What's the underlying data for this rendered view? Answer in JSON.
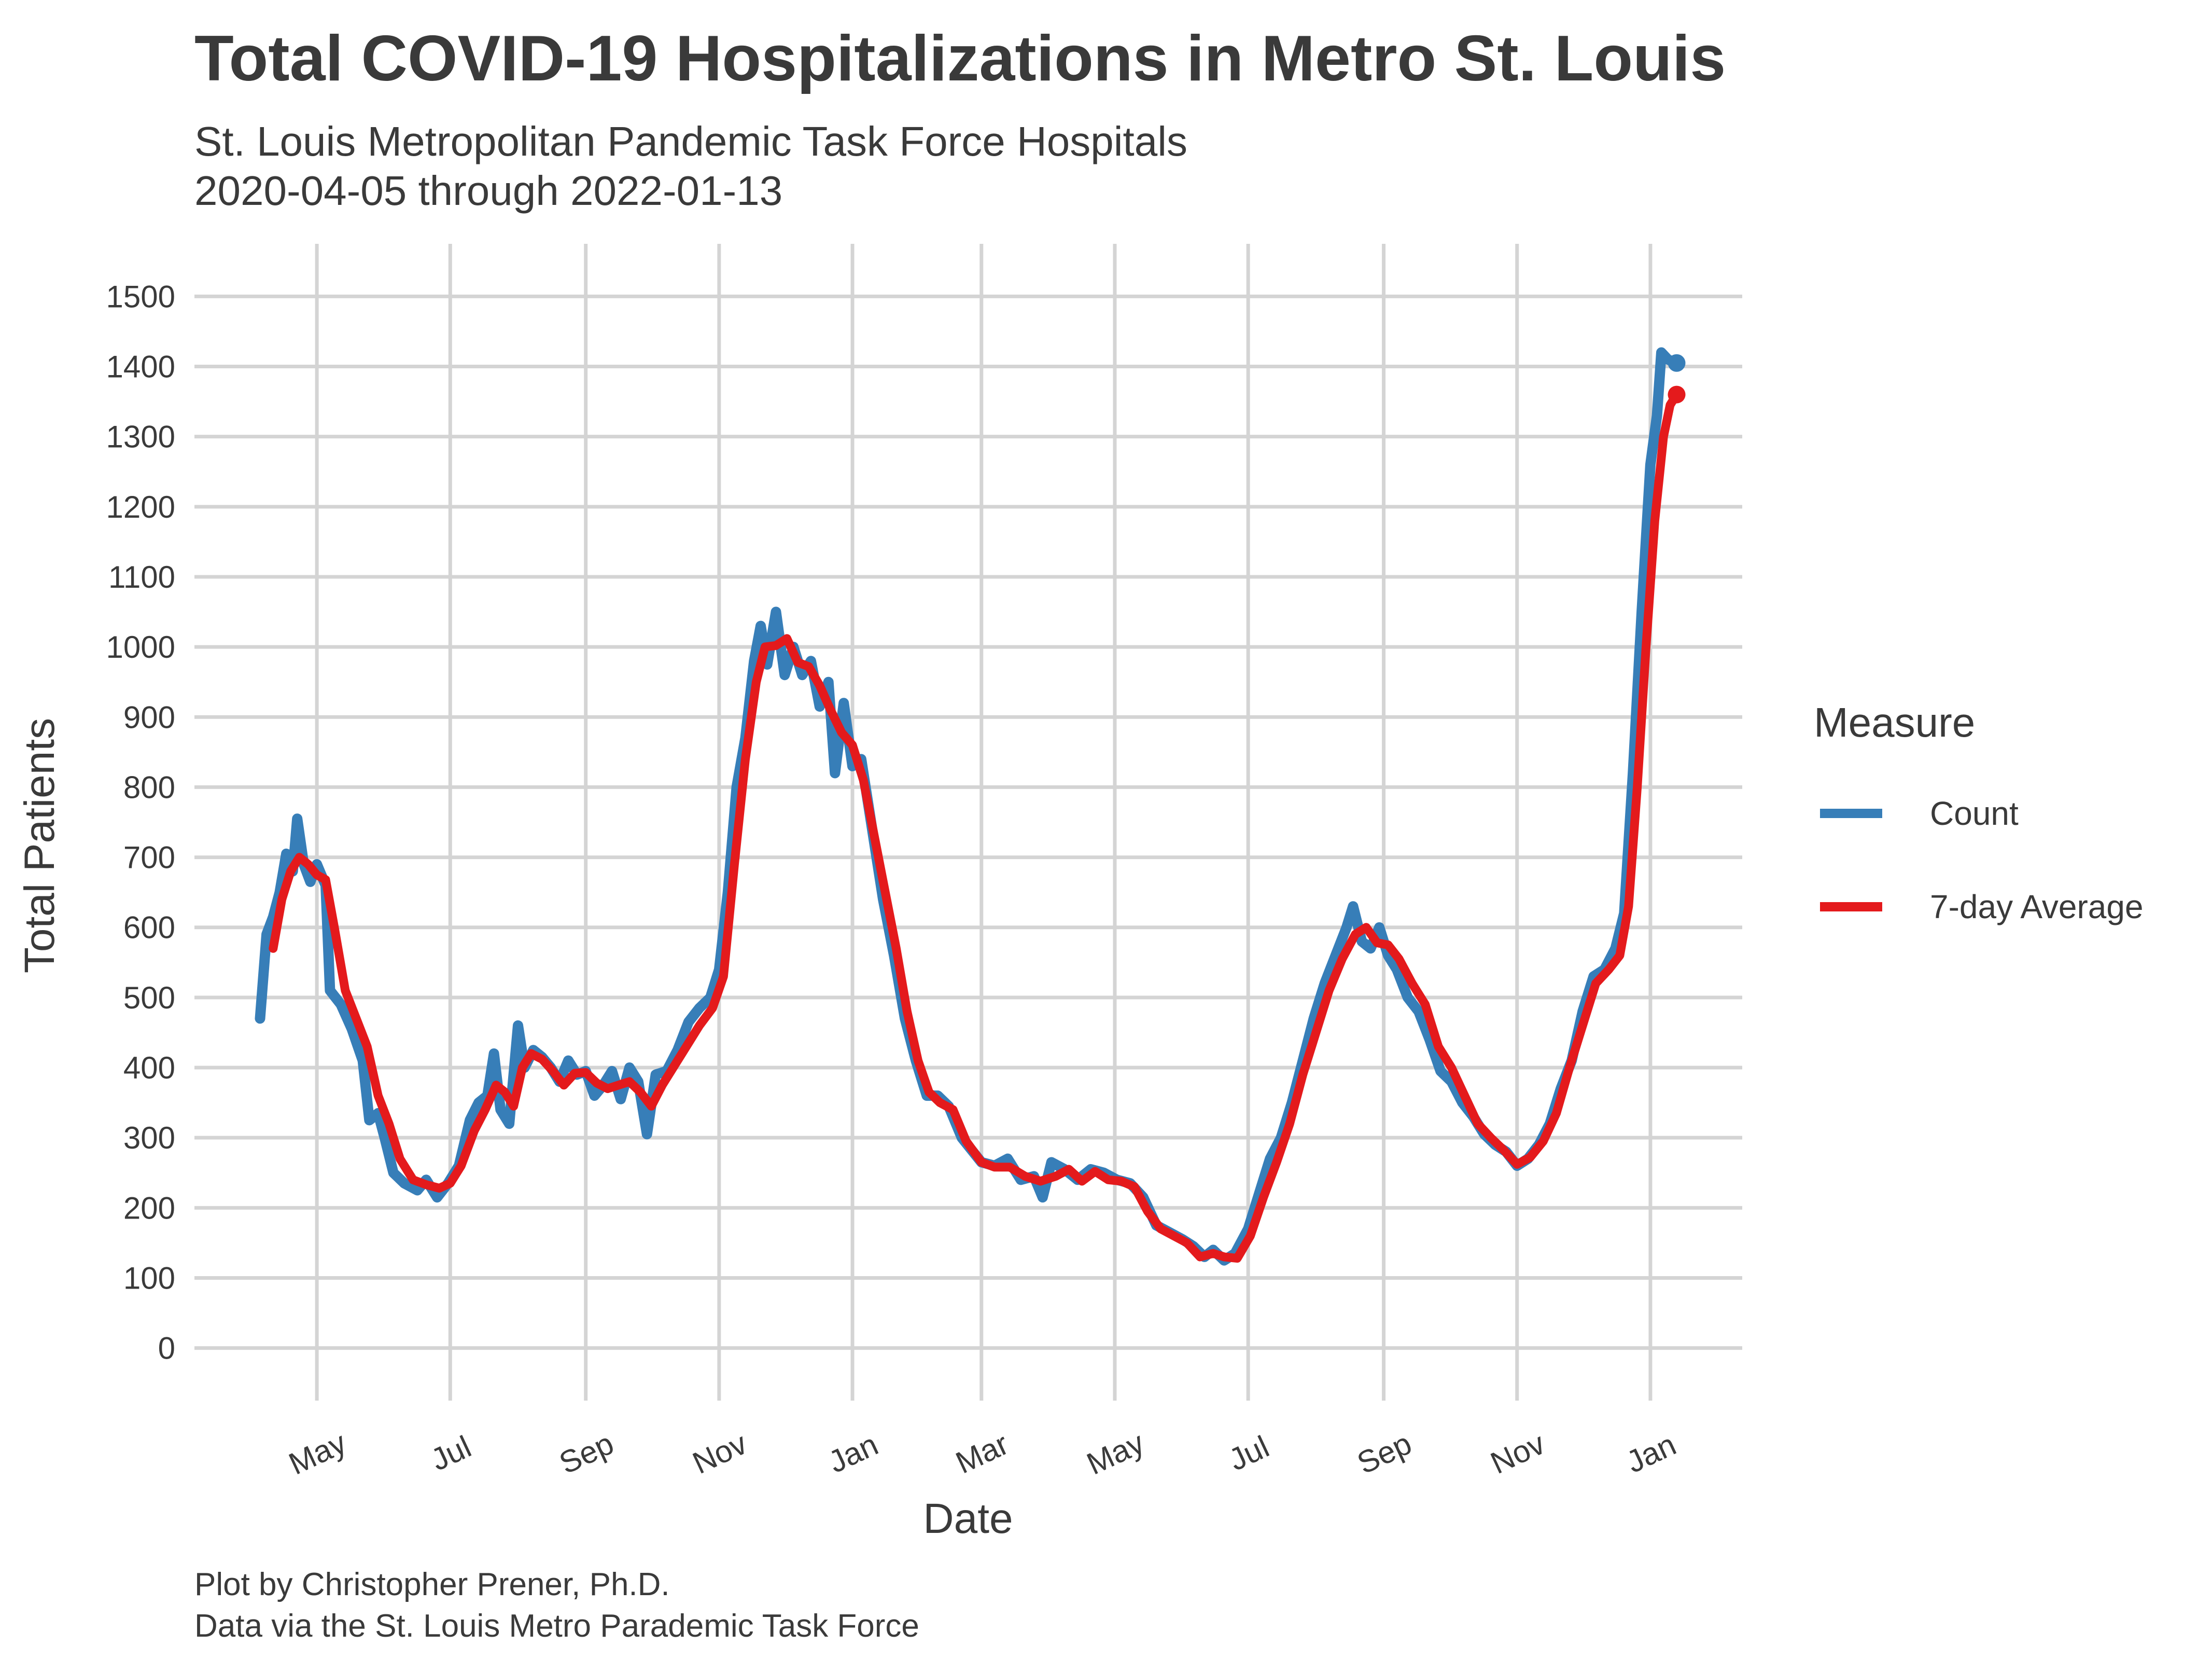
{
  "chart_data": {
    "type": "line",
    "title": "Total COVID-19 Hospitalizations in Metro St. Louis",
    "subtitle_lines": [
      "St. Louis Metropolitan Pandemic Task Force Hospitals",
      "2020-04-05 through 2022-01-13"
    ],
    "xlabel": "Date",
    "ylabel": "Total Patients",
    "xlim": [
      "2020-03-06",
      "2022-02-12"
    ],
    "ylim": [
      -75,
      1575
    ],
    "y_ticks": [
      0,
      100,
      200,
      300,
      400,
      500,
      600,
      700,
      800,
      900,
      1000,
      1100,
      1200,
      1300,
      1400,
      1500
    ],
    "x_ticks": [
      {
        "date": "2020-05-01",
        "label": "May"
      },
      {
        "date": "2020-07-01",
        "label": "Jul"
      },
      {
        "date": "2020-09-01",
        "label": "Sep"
      },
      {
        "date": "2020-11-01",
        "label": "Nov"
      },
      {
        "date": "2021-01-01",
        "label": "Jan"
      },
      {
        "date": "2021-03-01",
        "label": "Mar"
      },
      {
        "date": "2021-05-01",
        "label": "May"
      },
      {
        "date": "2021-07-01",
        "label": "Jul"
      },
      {
        "date": "2021-09-01",
        "label": "Sep"
      },
      {
        "date": "2021-11-01",
        "label": "Nov"
      },
      {
        "date": "2022-01-01",
        "label": "Jan"
      }
    ],
    "grid": true,
    "legend": {
      "title": "Measure",
      "position": "right"
    },
    "series": [
      {
        "name": "Count",
        "color": "#377eb8",
        "points": [
          [
            "2020-04-05",
            470
          ],
          [
            "2020-04-08",
            590
          ],
          [
            "2020-04-11",
            615
          ],
          [
            "2020-04-14",
            650
          ],
          [
            "2020-04-17",
            705
          ],
          [
            "2020-04-20",
            680
          ],
          [
            "2020-04-22",
            755
          ],
          [
            "2020-04-25",
            690
          ],
          [
            "2020-04-28",
            665
          ],
          [
            "2020-05-01",
            690
          ],
          [
            "2020-05-05",
            660
          ],
          [
            "2020-05-07",
            510
          ],
          [
            "2020-05-12",
            490
          ],
          [
            "2020-05-17",
            455
          ],
          [
            "2020-05-22",
            410
          ],
          [
            "2020-05-25",
            325
          ],
          [
            "2020-05-29",
            335
          ],
          [
            "2020-06-01",
            300
          ],
          [
            "2020-06-05",
            250
          ],
          [
            "2020-06-10",
            235
          ],
          [
            "2020-06-16",
            225
          ],
          [
            "2020-06-20",
            240
          ],
          [
            "2020-06-25",
            215
          ],
          [
            "2020-06-30",
            235
          ],
          [
            "2020-07-05",
            260
          ],
          [
            "2020-07-10",
            325
          ],
          [
            "2020-07-14",
            350
          ],
          [
            "2020-07-18",
            360
          ],
          [
            "2020-07-21",
            420
          ],
          [
            "2020-07-24",
            340
          ],
          [
            "2020-07-28",
            320
          ],
          [
            "2020-08-01",
            460
          ],
          [
            "2020-08-04",
            400
          ],
          [
            "2020-08-08",
            425
          ],
          [
            "2020-08-12",
            415
          ],
          [
            "2020-08-16",
            400
          ],
          [
            "2020-08-20",
            380
          ],
          [
            "2020-08-24",
            410
          ],
          [
            "2020-08-28",
            390
          ],
          [
            "2020-09-01",
            395
          ],
          [
            "2020-09-05",
            360
          ],
          [
            "2020-09-09",
            375
          ],
          [
            "2020-09-13",
            395
          ],
          [
            "2020-09-17",
            355
          ],
          [
            "2020-09-21",
            400
          ],
          [
            "2020-09-25",
            380
          ],
          [
            "2020-09-29",
            305
          ],
          [
            "2020-10-03",
            390
          ],
          [
            "2020-10-08",
            395
          ],
          [
            "2020-10-13",
            425
          ],
          [
            "2020-10-18",
            465
          ],
          [
            "2020-10-23",
            485
          ],
          [
            "2020-10-28",
            500
          ],
          [
            "2020-11-01",
            540
          ],
          [
            "2020-11-05",
            650
          ],
          [
            "2020-11-09",
            800
          ],
          [
            "2020-11-13",
            870
          ],
          [
            "2020-11-17",
            980
          ],
          [
            "2020-11-20",
            1030
          ],
          [
            "2020-11-23",
            975
          ],
          [
            "2020-11-27",
            1050
          ],
          [
            "2020-12-01",
            960
          ],
          [
            "2020-12-05",
            1000
          ],
          [
            "2020-12-09",
            960
          ],
          [
            "2020-12-13",
            980
          ],
          [
            "2020-12-17",
            915
          ],
          [
            "2020-12-21",
            950
          ],
          [
            "2020-12-24",
            820
          ],
          [
            "2020-12-28",
            920
          ],
          [
            "2021-01-01",
            830
          ],
          [
            "2021-01-05",
            840
          ],
          [
            "2021-01-10",
            740
          ],
          [
            "2021-01-15",
            640
          ],
          [
            "2021-01-20",
            560
          ],
          [
            "2021-01-25",
            470
          ],
          [
            "2021-01-30",
            410
          ],
          [
            "2021-02-04",
            360
          ],
          [
            "2021-02-09",
            360
          ],
          [
            "2021-02-14",
            345
          ],
          [
            "2021-02-20",
            300
          ],
          [
            "2021-03-01",
            265
          ],
          [
            "2021-03-07",
            260
          ],
          [
            "2021-03-13",
            270
          ],
          [
            "2021-03-19",
            240
          ],
          [
            "2021-03-25",
            245
          ],
          [
            "2021-03-29",
            215
          ],
          [
            "2021-04-02",
            265
          ],
          [
            "2021-04-08",
            255
          ],
          [
            "2021-04-14",
            240
          ],
          [
            "2021-04-20",
            255
          ],
          [
            "2021-04-26",
            250
          ],
          [
            "2021-05-02",
            240
          ],
          [
            "2021-05-08",
            235
          ],
          [
            "2021-05-14",
            215
          ],
          [
            "2021-05-20",
            175
          ],
          [
            "2021-05-26",
            165
          ],
          [
            "2021-06-01",
            155
          ],
          [
            "2021-06-06",
            145
          ],
          [
            "2021-06-11",
            130
          ],
          [
            "2021-06-15",
            140
          ],
          [
            "2021-06-20",
            125
          ],
          [
            "2021-06-25",
            135
          ],
          [
            "2021-07-01",
            170
          ],
          [
            "2021-07-06",
            220
          ],
          [
            "2021-07-11",
            270
          ],
          [
            "2021-07-16",
            300
          ],
          [
            "2021-07-21",
            350
          ],
          [
            "2021-07-26",
            410
          ],
          [
            "2021-07-31",
            470
          ],
          [
            "2021-08-05",
            520
          ],
          [
            "2021-08-10",
            560
          ],
          [
            "2021-08-15",
            600
          ],
          [
            "2021-08-18",
            630
          ],
          [
            "2021-08-22",
            580
          ],
          [
            "2021-08-26",
            570
          ],
          [
            "2021-08-30",
            600
          ],
          [
            "2021-09-03",
            560
          ],
          [
            "2021-09-07",
            540
          ],
          [
            "2021-09-12",
            500
          ],
          [
            "2021-09-17",
            480
          ],
          [
            "2021-09-22",
            440
          ],
          [
            "2021-09-27",
            395
          ],
          [
            "2021-10-02",
            380
          ],
          [
            "2021-10-07",
            350
          ],
          [
            "2021-10-12",
            330
          ],
          [
            "2021-10-17",
            305
          ],
          [
            "2021-10-22",
            290
          ],
          [
            "2021-10-27",
            280
          ],
          [
            "2021-11-01",
            260
          ],
          [
            "2021-11-06",
            270
          ],
          [
            "2021-11-11",
            290
          ],
          [
            "2021-11-16",
            320
          ],
          [
            "2021-11-21",
            370
          ],
          [
            "2021-11-26",
            410
          ],
          [
            "2021-12-01",
            480
          ],
          [
            "2021-12-06",
            530
          ],
          [
            "2021-12-11",
            540
          ],
          [
            "2021-12-16",
            570
          ],
          [
            "2021-12-20",
            620
          ],
          [
            "2021-12-24",
            820
          ],
          [
            "2021-12-28",
            1050
          ],
          [
            "2022-01-01",
            1260
          ],
          [
            "2022-01-04",
            1330
          ],
          [
            "2022-01-06",
            1420
          ],
          [
            "2022-01-09",
            1410
          ],
          [
            "2022-01-13",
            1405
          ]
        ]
      },
      {
        "name": "7-day Average",
        "color": "#e41a1c",
        "points": [
          [
            "2020-04-11",
            570
          ],
          [
            "2020-04-15",
            640
          ],
          [
            "2020-04-19",
            680
          ],
          [
            "2020-04-23",
            700
          ],
          [
            "2020-04-27",
            690
          ],
          [
            "2020-05-01",
            675
          ],
          [
            "2020-05-05",
            668
          ],
          [
            "2020-05-09",
            600
          ],
          [
            "2020-05-14",
            510
          ],
          [
            "2020-05-19",
            470
          ],
          [
            "2020-05-24",
            430
          ],
          [
            "2020-05-29",
            360
          ],
          [
            "2020-06-03",
            320
          ],
          [
            "2020-06-08",
            270
          ],
          [
            "2020-06-14",
            240
          ],
          [
            "2020-06-20",
            233
          ],
          [
            "2020-06-26",
            228
          ],
          [
            "2020-07-01",
            235
          ],
          [
            "2020-07-06",
            260
          ],
          [
            "2020-07-12",
            310
          ],
          [
            "2020-07-17",
            340
          ],
          [
            "2020-07-22",
            375
          ],
          [
            "2020-07-26",
            365
          ],
          [
            "2020-07-30",
            345
          ],
          [
            "2020-08-03",
            400
          ],
          [
            "2020-08-07",
            420
          ],
          [
            "2020-08-12",
            412
          ],
          [
            "2020-08-17",
            395
          ],
          [
            "2020-08-22",
            375
          ],
          [
            "2020-08-27",
            392
          ],
          [
            "2020-09-01",
            393
          ],
          [
            "2020-09-06",
            378
          ],
          [
            "2020-09-11",
            370
          ],
          [
            "2020-09-16",
            375
          ],
          [
            "2020-09-21",
            380
          ],
          [
            "2020-09-26",
            365
          ],
          [
            "2020-10-01",
            345
          ],
          [
            "2020-10-06",
            375
          ],
          [
            "2020-10-11",
            400
          ],
          [
            "2020-10-17",
            430
          ],
          [
            "2020-10-23",
            460
          ],
          [
            "2020-10-29",
            485
          ],
          [
            "2020-11-03",
            530
          ],
          [
            "2020-11-08",
            690
          ],
          [
            "2020-11-13",
            840
          ],
          [
            "2020-11-18",
            950
          ],
          [
            "2020-11-22",
            1000
          ],
          [
            "2020-11-27",
            1002
          ],
          [
            "2020-12-02",
            1012
          ],
          [
            "2020-12-07",
            978
          ],
          [
            "2020-12-12",
            972
          ],
          [
            "2020-12-17",
            945
          ],
          [
            "2020-12-22",
            910
          ],
          [
            "2020-12-27",
            878
          ],
          [
            "2021-01-01",
            860
          ],
          [
            "2021-01-06",
            810
          ],
          [
            "2021-01-11",
            730
          ],
          [
            "2021-01-16",
            650
          ],
          [
            "2021-01-21",
            570
          ],
          [
            "2021-01-26",
            480
          ],
          [
            "2021-01-31",
            410
          ],
          [
            "2021-02-05",
            365
          ],
          [
            "2021-02-10",
            350
          ],
          [
            "2021-02-16",
            340
          ],
          [
            "2021-02-22",
            295
          ],
          [
            "2021-03-01",
            265
          ],
          [
            "2021-03-07",
            258
          ],
          [
            "2021-03-14",
            258
          ],
          [
            "2021-03-21",
            245
          ],
          [
            "2021-03-28",
            238
          ],
          [
            "2021-04-04",
            245
          ],
          [
            "2021-04-10",
            255
          ],
          [
            "2021-04-16",
            238
          ],
          [
            "2021-04-22",
            252
          ],
          [
            "2021-04-28",
            240
          ],
          [
            "2021-05-04",
            238
          ],
          [
            "2021-05-10",
            230
          ],
          [
            "2021-05-16",
            195
          ],
          [
            "2021-05-22",
            170
          ],
          [
            "2021-05-28",
            160
          ],
          [
            "2021-06-03",
            150
          ],
          [
            "2021-06-09",
            130
          ],
          [
            "2021-06-15",
            135
          ],
          [
            "2021-06-20",
            130
          ],
          [
            "2021-06-26",
            128
          ],
          [
            "2021-07-02",
            160
          ],
          [
            "2021-07-08",
            215
          ],
          [
            "2021-07-14",
            265
          ],
          [
            "2021-07-20",
            320
          ],
          [
            "2021-07-26",
            390
          ],
          [
            "2021-08-01",
            450
          ],
          [
            "2021-08-07",
            510
          ],
          [
            "2021-08-13",
            555
          ],
          [
            "2021-08-19",
            590
          ],
          [
            "2021-08-24",
            600
          ],
          [
            "2021-08-29",
            578
          ],
          [
            "2021-09-03",
            575
          ],
          [
            "2021-09-08",
            555
          ],
          [
            "2021-09-14",
            520
          ],
          [
            "2021-09-20",
            490
          ],
          [
            "2021-09-26",
            430
          ],
          [
            "2021-10-02",
            400
          ],
          [
            "2021-10-08",
            360
          ],
          [
            "2021-10-14",
            320
          ],
          [
            "2021-10-20",
            300
          ],
          [
            "2021-10-26",
            282
          ],
          [
            "2021-11-01",
            262
          ],
          [
            "2021-11-07",
            272
          ],
          [
            "2021-11-13",
            295
          ],
          [
            "2021-11-19",
            335
          ],
          [
            "2021-11-25",
            400
          ],
          [
            "2021-12-01",
            460
          ],
          [
            "2021-12-07",
            520
          ],
          [
            "2021-12-13",
            540
          ],
          [
            "2021-12-18",
            560
          ],
          [
            "2021-12-22",
            630
          ],
          [
            "2021-12-26",
            800
          ],
          [
            "2021-12-30",
            1000
          ],
          [
            "2022-01-03",
            1180
          ],
          [
            "2022-01-07",
            1300
          ],
          [
            "2022-01-10",
            1345
          ],
          [
            "2022-01-13",
            1360
          ]
        ]
      }
    ],
    "caption_lines": [
      "Plot by Christopher Prener, Ph.D.",
      "Data via the St. Louis Metro Parademic Task Force"
    ]
  }
}
